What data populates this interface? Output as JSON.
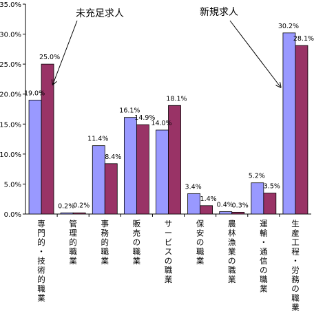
{
  "chart_data": {
    "type": "bar",
    "categories": [
      "専門的・技術的職業",
      "管理的職業",
      "事務的職業",
      "販売の職業",
      "サービスの職業",
      "保安の職業",
      "農林漁業の職業",
      "運輸・通信の職業",
      "生産工程・労務の職業"
    ],
    "category_labels": [
      "専門的・技術的職業",
      "管理的職業",
      "事務的職業",
      "販売の職業",
      "サービスの職業",
      "保安の職業",
      "農林漁業の職業",
      "運輸・通信の職業",
      "生産工程・労務の職業"
    ],
    "series": [
      {
        "values": [
          19.0,
          0.2,
          11.4,
          16.1,
          14.0,
          3.4,
          0.4,
          5.2,
          30.2
        ],
        "labels": [
          "19.0%",
          "0.2%",
          "11.4%",
          "16.1%",
          "14.0%",
          "3.4%",
          "0.4%",
          "5.2%",
          "30.2%"
        ],
        "color": "#9999ff"
      },
      {
        "values": [
          25.0,
          0.2,
          8.4,
          14.9,
          18.1,
          1.4,
          0.3,
          3.5,
          28.1
        ],
        "labels": [
          "25.0%",
          "0.2%",
          "8.4%",
          "14.9%",
          "18.1%",
          "1.4%",
          "0.3%",
          "3.5%",
          "28.1%"
        ],
        "color": "#993366"
      }
    ],
    "ylim": [
      0,
      35
    ],
    "yticks": [
      0,
      5,
      10,
      15,
      20,
      25,
      30,
      35
    ],
    "ytick_labels": [
      "0.0%",
      "5.0%",
      "10.0%",
      "15.0%",
      "20.0%",
      "25.0%",
      "30.0%",
      "35.0%"
    ],
    "annotations": [
      {
        "text": "未充足求人",
        "points_to": "専門的・技術的職業"
      },
      {
        "text": "新規求人",
        "points_to": "生産工程・労務の職業"
      }
    ],
    "grid": false,
    "legend": "none"
  }
}
